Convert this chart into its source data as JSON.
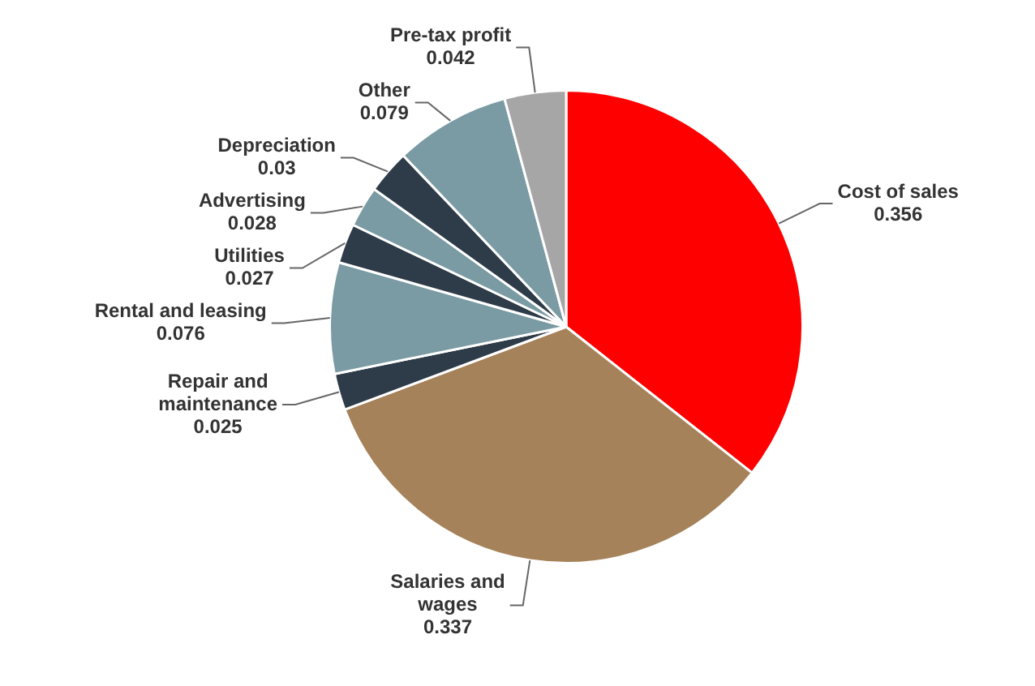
{
  "chart_data": {
    "type": "pie",
    "categories": [
      "Cost of sales",
      "Salaries and wages",
      "Repair and maintenance",
      "Rental and leasing",
      "Utilities",
      "Advertising",
      "Depreciation",
      "Other",
      "Pre-tax profit"
    ],
    "values": [
      0.356,
      0.337,
      0.025,
      0.076,
      0.027,
      0.028,
      0.03,
      0.079,
      0.042
    ],
    "colors": [
      "#ff0000",
      "#a6825a",
      "#2e3b48",
      "#7a9ba3",
      "#2e3b48",
      "#7a9ba3",
      "#2e3b48",
      "#7a9ba3",
      "#a6a6a6"
    ],
    "data_labels": true,
    "legend": false
  }
}
